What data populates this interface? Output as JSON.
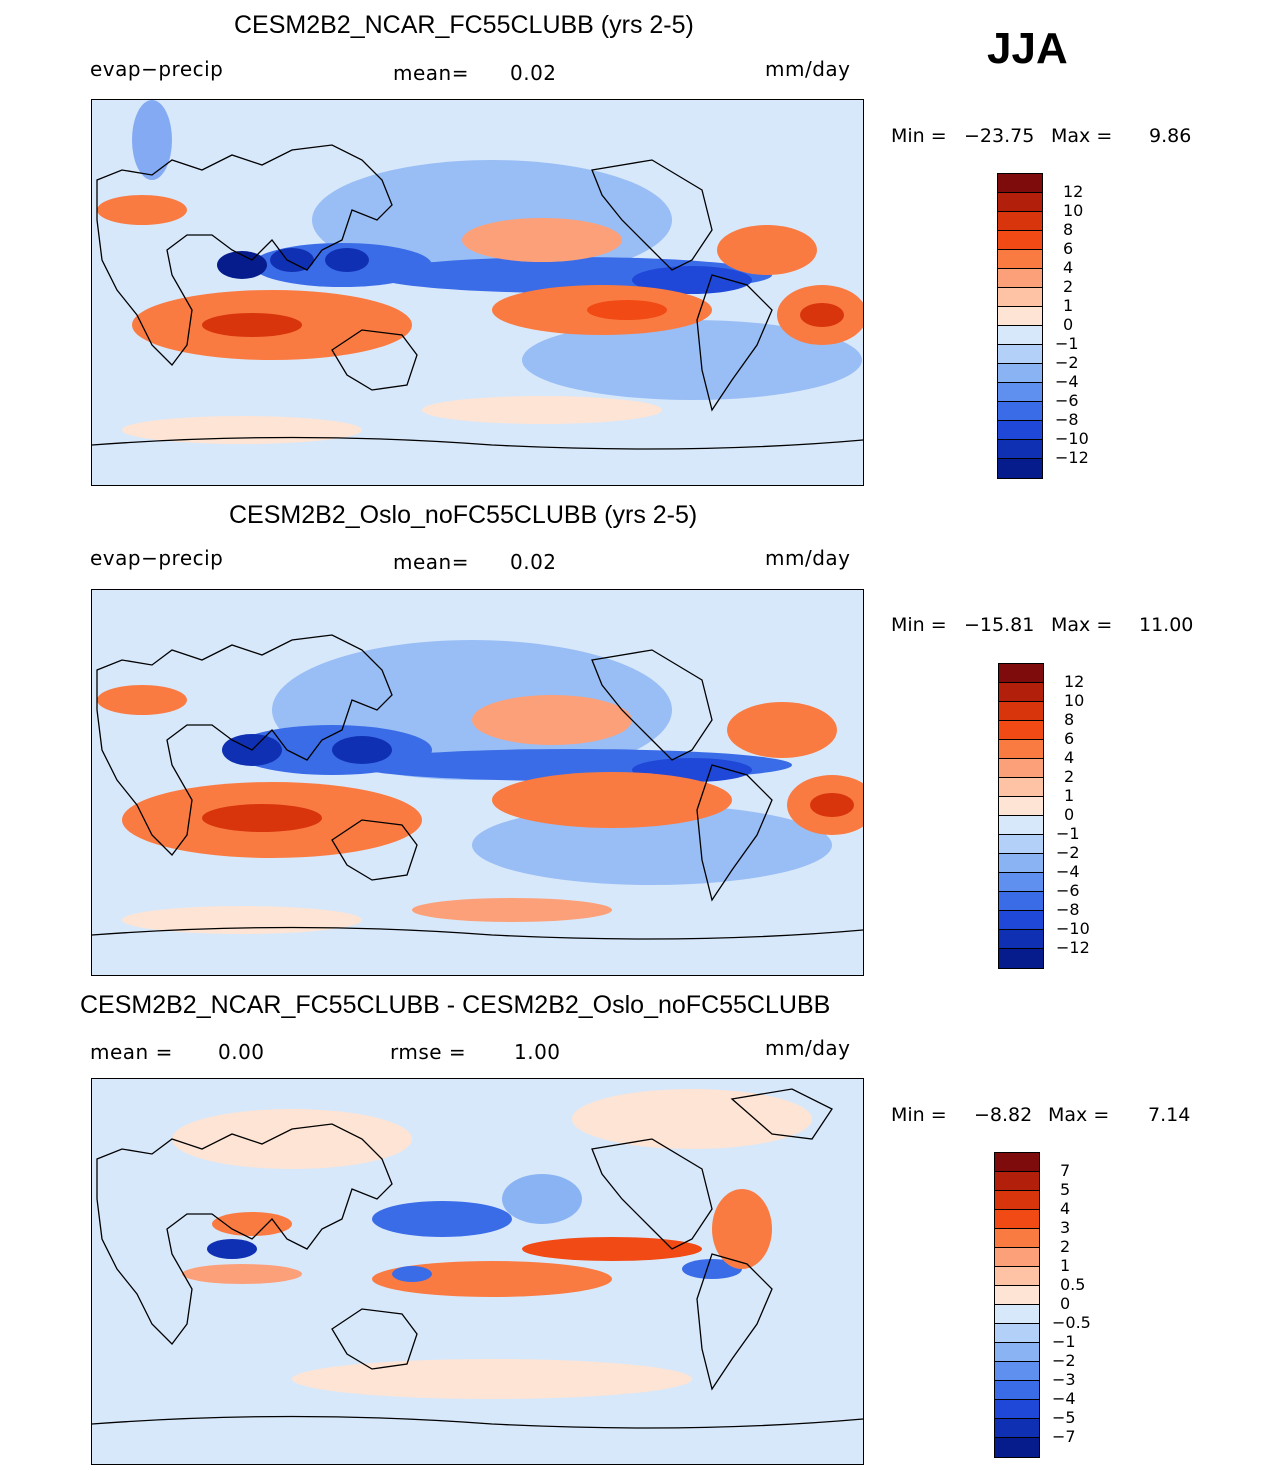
{
  "season": "JJA",
  "panels": [
    {
      "title": "CESM2B2_NCAR_FC55CLUBB (yrs 2-5)",
      "left_label": "evap−precip",
      "center_label": "mean=",
      "center_value": "0.02",
      "units": "mm/day",
      "min_label": "Min  =",
      "min_value": "−23.75",
      "max_label": "Max  =",
      "max_value": "9.86",
      "colorbar": {
        "ticks": [
          "12",
          "10",
          "8",
          "6",
          "4",
          "2",
          "1",
          "0",
          "−1",
          "−2",
          "−4",
          "−6",
          "−8",
          "−10",
          "−12"
        ],
        "colors": [
          "#7f0c0c",
          "#b21f0b",
          "#d8350d",
          "#f14a14",
          "#fa7b42",
          "#fca079",
          "#fdc3a4",
          "#fde4d4",
          "#d8e8fb",
          "#b3d0f8",
          "#8ab3f4",
          "#5f90f0",
          "#3a6ce8",
          "#1f48d8",
          "#1030b4",
          "#061c8c"
        ]
      },
      "map_regions": [
        "arabian-sea-dry-band",
        "south-indian-ocean-wet-zone",
        "west-pacific-convergence",
        "itcz-pacific",
        "south-atlantic-high",
        "north-pacific-high",
        "north-atlantic-high",
        "southeast-pacific-high"
      ]
    },
    {
      "title": "CESM2B2_Oslo_noFC55CLUBB (yrs 2-5)",
      "left_label": "evap−precip",
      "center_label": "mean=",
      "center_value": "0.02",
      "units": "mm/day",
      "min_label": "Min  =",
      "min_value": "−15.81",
      "max_label": "Max  =",
      "max_value": "11.00",
      "colorbar": {
        "ticks": [
          "12",
          "10",
          "8",
          "6",
          "4",
          "2",
          "1",
          "0",
          "−1",
          "−2",
          "−4",
          "−6",
          "−8",
          "−10",
          "−12"
        ],
        "colors": [
          "#7f0c0c",
          "#b21f0b",
          "#d8350d",
          "#f14a14",
          "#fa7b42",
          "#fca079",
          "#fdc3a4",
          "#fde4d4",
          "#d8e8fb",
          "#b3d0f8",
          "#8ab3f4",
          "#5f90f0",
          "#3a6ce8",
          "#1f48d8",
          "#1030b4",
          "#061c8c"
        ]
      }
    },
    {
      "title": "CESM2B2_NCAR_FC55CLUBB - CESM2B2_Oslo_noFC55CLUBB",
      "left_label": "mean  =",
      "left_value": "0.00",
      "center_label": "rmse  =",
      "center_value": "1.00",
      "units": "mm/day",
      "min_label": "Min  =",
      "min_value": "−8.82",
      "max_label": "Max  =",
      "max_value": "7.14",
      "colorbar": {
        "ticks": [
          "7",
          "5",
          "4",
          "3",
          "2",
          "1",
          "0.5",
          "0",
          "−0.5",
          "−1",
          "−2",
          "−3",
          "−4",
          "−5",
          "−7"
        ],
        "colors": [
          "#7f0c0c",
          "#b21f0b",
          "#d8350d",
          "#f14a14",
          "#fa7b42",
          "#fca079",
          "#fdc3a4",
          "#fde4d4",
          "#d8e8fb",
          "#b3d0f8",
          "#8ab3f4",
          "#5f90f0",
          "#3a6ce8",
          "#1f48d8",
          "#1030b4",
          "#061c8c"
        ]
      }
    }
  ]
}
